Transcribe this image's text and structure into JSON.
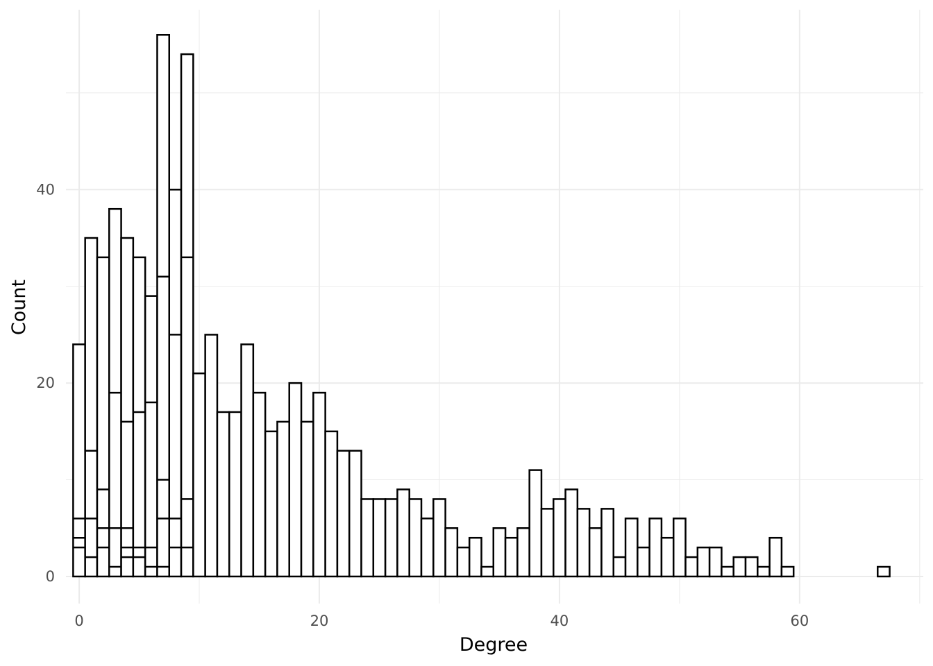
{
  "chart_data": {
    "type": "bar",
    "title": "",
    "xlabel": "Degree",
    "ylabel": "Count",
    "xlim": [
      -1.1,
      70.3
    ],
    "ylim": [
      -2.8,
      58.6
    ],
    "x_ticks": [
      0,
      20,
      40,
      60
    ],
    "y_ticks": [
      0,
      20,
      40
    ],
    "x_minor_ticks": [
      10,
      30,
      50,
      70
    ],
    "y_minor_ticks": [
      10,
      30,
      50
    ],
    "grid": true,
    "bin_width": 1,
    "bar_fill": "#ffffff",
    "bar_stroke": "#000000",
    "grid_color": "#ebebeb",
    "overlaid_stacked_bars": true,
    "x": [
      0,
      1,
      2,
      3,
      4,
      5,
      6,
      7,
      8,
      9,
      10,
      11,
      12,
      13,
      14,
      15,
      16,
      17,
      18,
      19,
      20,
      21,
      22,
      23,
      24,
      25,
      26,
      27,
      28,
      29,
      30,
      31,
      32,
      33,
      34,
      35,
      36,
      37,
      38,
      39,
      40,
      41,
      42,
      43,
      44,
      45,
      46,
      47,
      48,
      49,
      50,
      51,
      52,
      53,
      54,
      55,
      56,
      57,
      58,
      59,
      67
    ],
    "values": [
      24,
      35,
      33,
      38,
      35,
      33,
      29,
      56,
      40,
      54,
      21,
      25,
      17,
      17,
      24,
      19,
      15,
      16,
      20,
      16,
      19,
      15,
      13,
      13,
      8,
      8,
      8,
      9,
      8,
      6,
      8,
      5,
      3,
      4,
      1,
      5,
      4,
      5,
      11,
      7,
      8,
      9,
      7,
      5,
      7,
      2,
      6,
      3,
      6,
      4,
      6,
      2,
      3,
      3,
      1,
      2,
      2,
      1,
      4,
      1,
      1
    ],
    "inner_segment_boundaries": [
      {
        "x": 0,
        "values": [
          3,
          4,
          6
        ]
      },
      {
        "x": 1,
        "values": [
          2,
          6,
          13
        ]
      },
      {
        "x": 2,
        "values": [
          3,
          5,
          9
        ]
      },
      {
        "x": 3,
        "values": [
          1,
          5,
          19
        ]
      },
      {
        "x": 4,
        "values": [
          2,
          3,
          5,
          16
        ]
      },
      {
        "x": 5,
        "values": [
          2,
          3,
          17
        ]
      },
      {
        "x": 6,
        "values": [
          1,
          3,
          18
        ]
      },
      {
        "x": 7,
        "values": [
          1,
          6,
          10,
          31
        ]
      },
      {
        "x": 8,
        "values": [
          3,
          6,
          25
        ]
      },
      {
        "x": 9,
        "values": [
          3,
          8,
          33
        ]
      }
    ]
  }
}
